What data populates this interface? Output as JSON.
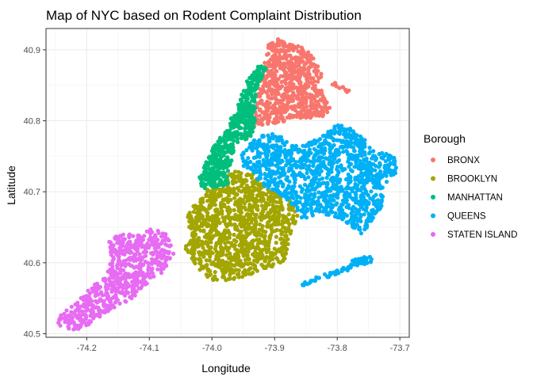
{
  "chart_data": {
    "type": "scatter",
    "title": "Map of NYC based on Rodent Complaint Distribution",
    "xlabel": "Longitude",
    "ylabel": "Latitude",
    "xlim": [
      -74.265,
      -73.685
    ],
    "ylim": [
      40.495,
      40.93
    ],
    "x_ticks": [
      -74.2,
      -74.1,
      -74.0,
      -73.9,
      -73.8,
      -73.7
    ],
    "x_tick_labels": [
      "-74.2",
      "-74.1",
      "-74.0",
      "-73.9",
      "-73.8",
      "-73.7"
    ],
    "y_ticks": [
      40.5,
      40.6,
      40.7,
      40.8,
      40.9
    ],
    "y_tick_labels": [
      "40.5",
      "40.6",
      "40.7",
      "40.8",
      "40.9"
    ],
    "grid": true,
    "legend": {
      "title": "Borough",
      "position": "right"
    },
    "series": [
      {
        "name": "BRONX",
        "color": "#F8766D",
        "regions": [
          {
            "polygon": [
              [
                -73.935,
                40.79
              ],
              [
                -73.93,
                40.83
              ],
              [
                -73.92,
                40.865
              ],
              [
                -73.91,
                40.91
              ],
              [
                -73.895,
                40.915
              ],
              [
                -73.86,
                40.905
              ],
              [
                -73.84,
                40.895
              ],
              [
                -73.825,
                40.87
              ],
              [
                -73.825,
                40.84
              ],
              [
                -73.81,
                40.815
              ],
              [
                -73.825,
                40.805
              ],
              [
                -73.88,
                40.8
              ],
              [
                -73.91,
                40.795
              ]
            ],
            "points": 700
          }
        ],
        "strips": [
          {
            "from": [
              -73.81,
              40.855
            ],
            "to": [
              -73.78,
              40.84
            ],
            "width": 0.006,
            "points": 14
          }
        ]
      },
      {
        "name": "BROOKLYN",
        "color": "#A3A500",
        "regions": [
          {
            "polygon": [
              [
                -74.04,
                40.67
              ],
              [
                -74.025,
                40.685
              ],
              [
                -74.005,
                40.705
              ],
              [
                -73.99,
                40.715
              ],
              [
                -73.96,
                40.73
              ],
              [
                -73.935,
                40.725
              ],
              [
                -73.92,
                40.71
              ],
              [
                -73.875,
                40.69
              ],
              [
                -73.86,
                40.66
              ],
              [
                -73.875,
                40.64
              ],
              [
                -73.885,
                40.6
              ],
              [
                -73.92,
                40.59
              ],
              [
                -73.96,
                40.575
              ],
              [
                -74.0,
                40.575
              ],
              [
                -74.02,
                40.59
              ],
              [
                -74.035,
                40.61
              ],
              [
                -74.045,
                40.62
              ],
              [
                -74.035,
                40.64
              ]
            ],
            "points": 1100
          }
        ],
        "strips": []
      },
      {
        "name": "MANHATTAN",
        "color": "#00BF7D",
        "regions": [
          {
            "polygon": [
              [
                -74.02,
                40.705
              ],
              [
                -74.0,
                40.705
              ],
              [
                -73.975,
                40.71
              ],
              [
                -73.97,
                40.74
              ],
              [
                -73.96,
                40.765
              ],
              [
                -73.935,
                40.78
              ],
              [
                -73.93,
                40.8
              ],
              [
                -73.93,
                40.83
              ],
              [
                -73.925,
                40.855
              ],
              [
                -73.91,
                40.875
              ],
              [
                -73.925,
                40.878
              ],
              [
                -73.945,
                40.855
              ],
              [
                -73.96,
                40.82
              ],
              [
                -73.98,
                40.785
              ],
              [
                -74.0,
                40.76
              ],
              [
                -74.01,
                40.74
              ],
              [
                -74.02,
                40.72
              ]
            ],
            "points": 560
          }
        ],
        "strips": []
      },
      {
        "name": "QUEENS",
        "color": "#00B0F6",
        "regions": [
          {
            "polygon": [
              [
                -73.96,
                40.74
              ],
              [
                -73.945,
                40.765
              ],
              [
                -73.92,
                40.78
              ],
              [
                -73.895,
                40.782
              ],
              [
                -73.86,
                40.765
              ],
              [
                -73.83,
                40.775
              ],
              [
                -73.8,
                40.795
              ],
              [
                -73.78,
                40.79
              ],
              [
                -73.76,
                40.78
              ],
              [
                -73.745,
                40.76
              ],
              [
                -73.72,
                40.755
              ],
              [
                -73.705,
                40.745
              ],
              [
                -73.705,
                40.725
              ],
              [
                -73.725,
                40.71
              ],
              [
                -73.73,
                40.675
              ],
              [
                -73.745,
                40.66
              ],
              [
                -73.76,
                40.64
              ],
              [
                -73.79,
                40.66
              ],
              [
                -73.83,
                40.67
              ],
              [
                -73.855,
                40.66
              ],
              [
                -73.87,
                40.68
              ],
              [
                -73.9,
                40.7
              ],
              [
                -73.92,
                40.71
              ],
              [
                -73.935,
                40.725
              ]
            ],
            "points": 1200
          }
        ],
        "strips": [
          {
            "from": [
              -73.855,
              40.57
            ],
            "to": [
              -73.775,
              40.595
            ],
            "width": 0.006,
            "points": 40
          },
          {
            "from": [
              -73.775,
              40.6
            ],
            "to": [
              -73.745,
              40.605
            ],
            "width": 0.01,
            "points": 30
          }
        ]
      },
      {
        "name": "STATEN ISLAND",
        "color": "#E76BF3",
        "regions": [
          {
            "polygon": [
              [
                -74.25,
                40.51
              ],
              [
                -74.245,
                40.525
              ],
              [
                -74.215,
                40.545
              ],
              [
                -74.195,
                40.565
              ],
              [
                -74.17,
                40.58
              ],
              [
                -74.16,
                40.605
              ],
              [
                -74.165,
                40.63
              ],
              [
                -74.15,
                40.64
              ],
              [
                -74.12,
                40.64
              ],
              [
                -74.095,
                40.648
              ],
              [
                -74.07,
                40.64
              ],
              [
                -74.06,
                40.615
              ],
              [
                -74.075,
                40.59
              ],
              [
                -74.1,
                40.57
              ],
              [
                -74.125,
                40.55
              ],
              [
                -74.16,
                40.535
              ],
              [
                -74.19,
                40.515
              ],
              [
                -74.215,
                40.505
              ],
              [
                -74.24,
                40.505
              ]
            ],
            "points": 650
          }
        ],
        "strips": []
      }
    ]
  }
}
